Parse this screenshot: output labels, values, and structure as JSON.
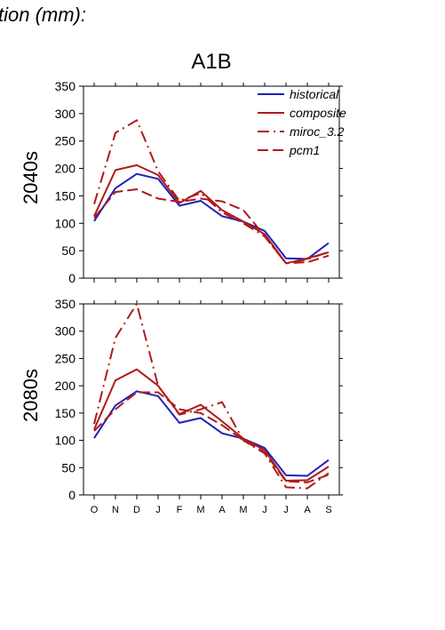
{
  "header": {
    "partial_title": "tion (mm):",
    "scenario": "A1B"
  },
  "colors": {
    "historical": "#2020b8",
    "composite": "#b01a1a",
    "miroc_3.2": "#b01a1a",
    "pcm1": "#b01a1a"
  },
  "chart_data": [
    {
      "type": "line",
      "row_label": "2040s",
      "categories": [
        "O",
        "N",
        "D",
        "J",
        "F",
        "M",
        "A",
        "M",
        "J",
        "J",
        "A",
        "S"
      ],
      "ylim": [
        0,
        350
      ],
      "yticks": [
        "0",
        "50",
        "100",
        "150",
        "200",
        "250",
        "300",
        "350"
      ],
      "legend": "top-right",
      "series": [
        {
          "name": "historical",
          "style": "solid",
          "values": [
            104,
            164,
            190,
            181,
            132,
            141,
            113,
            103,
            86,
            36,
            35,
            64
          ]
        },
        {
          "name": "composite",
          "style": "solid",
          "values": [
            113,
            197,
            206,
            188,
            137,
            159,
            124,
            103,
            80,
            27,
            36,
            47
          ]
        },
        {
          "name": "miroc_3.2",
          "style": "dashdot",
          "values": [
            135,
            265,
            288,
            195,
            141,
            155,
            120,
            100,
            76,
            27,
            34,
            48
          ]
        },
        {
          "name": "pcm1",
          "style": "dashed",
          "values": [
            110,
            157,
            162,
            145,
            139,
            145,
            140,
            124,
            77,
            27,
            29,
            41
          ]
        }
      ]
    },
    {
      "type": "line",
      "row_label": "2080s",
      "categories": [
        "O",
        "N",
        "D",
        "J",
        "F",
        "M",
        "A",
        "M",
        "J",
        "J",
        "A",
        "S"
      ],
      "ylim": [
        0,
        350
      ],
      "yticks": [
        "0",
        "50",
        "100",
        "150",
        "200",
        "250",
        "300",
        "350"
      ],
      "series": [
        {
          "name": "historical",
          "style": "solid",
          "values": [
            104,
            164,
            190,
            181,
            132,
            141,
            113,
            103,
            86,
            36,
            35,
            64
          ]
        },
        {
          "name": "composite",
          "style": "solid",
          "values": [
            120,
            210,
            230,
            200,
            148,
            165,
            135,
            103,
            82,
            26,
            27,
            52
          ]
        },
        {
          "name": "miroc_3.2",
          "style": "dashdot",
          "values": [
            130,
            288,
            350,
            200,
            147,
            157,
            170,
            100,
            76,
            14,
            12,
            40
          ]
        },
        {
          "name": "pcm1",
          "style": "dashed",
          "values": [
            117,
            157,
            188,
            188,
            157,
            150,
            128,
            100,
            78,
            25,
            23,
            37
          ]
        }
      ]
    }
  ]
}
